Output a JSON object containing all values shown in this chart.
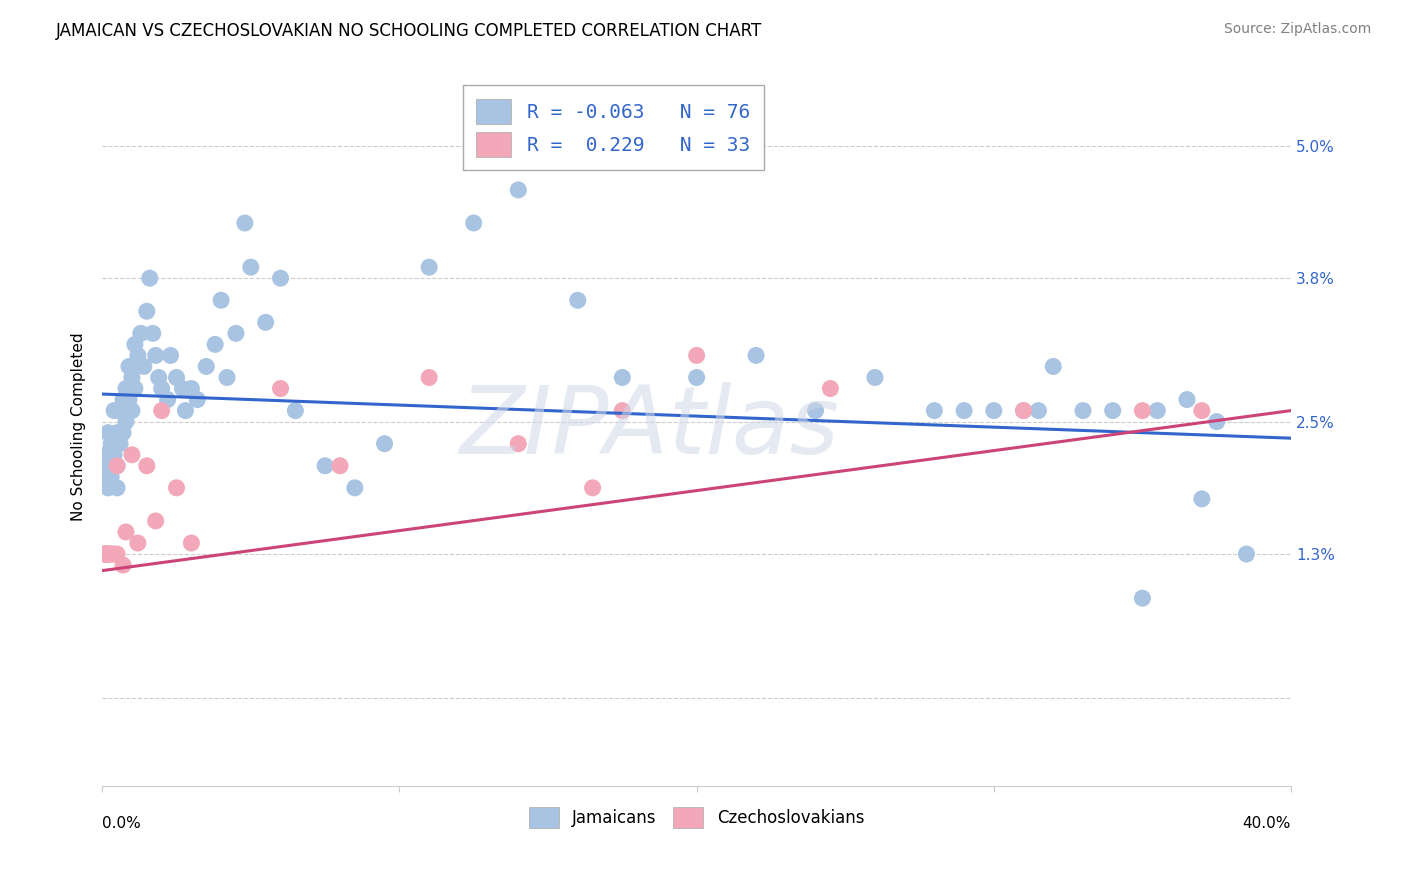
{
  "title": "JAMAICAN VS CZECHOSLOVAKIAN NO SCHOOLING COMPLETED CORRELATION CHART",
  "source": "Source: ZipAtlas.com",
  "ylabel": "No Schooling Completed",
  "ytick_positions": [
    0.0,
    0.013,
    0.025,
    0.038,
    0.05
  ],
  "ytick_labels": [
    "",
    "1.3%",
    "2.5%",
    "3.8%",
    "5.0%"
  ],
  "xmin": 0.0,
  "xmax": 0.4,
  "ymin": -0.008,
  "ymax": 0.057,
  "blue_color": "#a8c4e2",
  "pink_color": "#f2a8b8",
  "blue_line_color": "#3366cc",
  "pink_line_color": "#cc4477",
  "legend_label_blue": "Jamaicans",
  "legend_label_pink": "Czechoslovakians",
  "legend_r_blue": "R = -0.063",
  "legend_n_blue": "N = 76",
  "legend_r_pink": "R =  0.229",
  "legend_n_pink": "N = 33",
  "blue_trendline_x": [
    0.0,
    0.4
  ],
  "blue_trendline_y": [
    0.0275,
    0.0235
  ],
  "pink_trendline_x": [
    0.0,
    0.4
  ],
  "pink_trendline_y": [
    0.0115,
    0.026
  ],
  "blue_scatter_x": [
    0.001,
    0.001,
    0.002,
    0.002,
    0.002,
    0.003,
    0.003,
    0.004,
    0.004,
    0.005,
    0.005,
    0.005,
    0.006,
    0.006,
    0.007,
    0.007,
    0.008,
    0.008,
    0.009,
    0.009,
    0.01,
    0.01,
    0.011,
    0.011,
    0.012,
    0.013,
    0.014,
    0.015,
    0.016,
    0.017,
    0.018,
    0.019,
    0.02,
    0.022,
    0.023,
    0.025,
    0.027,
    0.028,
    0.03,
    0.032,
    0.035,
    0.038,
    0.04,
    0.042,
    0.045,
    0.048,
    0.05,
    0.055,
    0.06,
    0.065,
    0.075,
    0.085,
    0.095,
    0.11,
    0.125,
    0.14,
    0.16,
    0.175,
    0.2,
    0.22,
    0.24,
    0.26,
    0.28,
    0.29,
    0.3,
    0.31,
    0.315,
    0.32,
    0.33,
    0.34,
    0.355,
    0.365,
    0.375,
    0.385,
    0.37,
    0.35
  ],
  "blue_scatter_y": [
    0.022,
    0.02,
    0.024,
    0.021,
    0.019,
    0.023,
    0.02,
    0.022,
    0.026,
    0.021,
    0.024,
    0.019,
    0.026,
    0.023,
    0.027,
    0.024,
    0.028,
    0.025,
    0.03,
    0.027,
    0.029,
    0.026,
    0.032,
    0.028,
    0.031,
    0.033,
    0.03,
    0.035,
    0.038,
    0.033,
    0.031,
    0.029,
    0.028,
    0.027,
    0.031,
    0.029,
    0.028,
    0.026,
    0.028,
    0.027,
    0.03,
    0.032,
    0.036,
    0.029,
    0.033,
    0.043,
    0.039,
    0.034,
    0.038,
    0.026,
    0.021,
    0.019,
    0.023,
    0.039,
    0.043,
    0.046,
    0.036,
    0.029,
    0.029,
    0.031,
    0.026,
    0.029,
    0.026,
    0.026,
    0.026,
    0.026,
    0.026,
    0.03,
    0.026,
    0.026,
    0.026,
    0.027,
    0.025,
    0.013,
    0.018,
    0.009
  ],
  "pink_scatter_x": [
    0.001,
    0.001,
    0.001,
    0.001,
    0.001,
    0.002,
    0.002,
    0.002,
    0.003,
    0.003,
    0.004,
    0.005,
    0.005,
    0.007,
    0.008,
    0.01,
    0.012,
    0.015,
    0.018,
    0.02,
    0.025,
    0.03,
    0.06,
    0.08,
    0.11,
    0.14,
    0.165,
    0.175,
    0.2,
    0.245,
    0.31,
    0.35,
    0.37
  ],
  "pink_scatter_y": [
    0.013,
    0.013,
    0.013,
    0.013,
    0.013,
    0.013,
    0.013,
    0.013,
    0.013,
    0.013,
    0.013,
    0.013,
    0.021,
    0.012,
    0.015,
    0.022,
    0.014,
    0.021,
    0.016,
    0.026,
    0.019,
    0.014,
    0.028,
    0.021,
    0.029,
    0.023,
    0.019,
    0.026,
    0.031,
    0.028,
    0.026,
    0.026,
    0.026
  ],
  "title_fontsize": 12,
  "source_fontsize": 10,
  "axis_label_fontsize": 11,
  "tick_fontsize": 11,
  "legend_fontsize": 14,
  "watermark_text": "ZIPAtlas",
  "background_color": "#ffffff",
  "grid_color": "#cccccc"
}
